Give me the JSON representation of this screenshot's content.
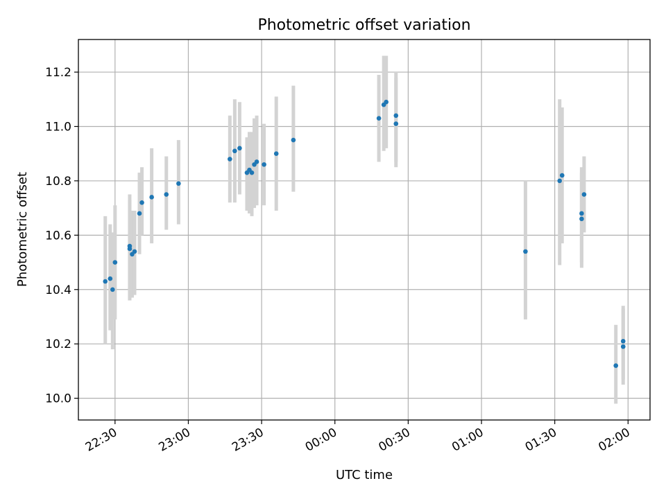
{
  "chart_data": {
    "type": "scatter",
    "title": "Photometric offset variation",
    "xlabel": "UTC time",
    "ylabel": "Photometric offset",
    "x_unit": "UTC time (HH:MM)",
    "xlim": [
      "22:15",
      "02:09"
    ],
    "ylim": [
      9.92,
      11.32
    ],
    "grid": true,
    "xticks": [
      "22:30",
      "23:00",
      "23:30",
      "00:00",
      "00:30",
      "01:00",
      "01:30",
      "02:00"
    ],
    "yticks": [
      "10.0",
      "10.2",
      "10.4",
      "10.6",
      "10.8",
      "11.0",
      "11.2"
    ],
    "marker_color": "#1f77b4",
    "errorbar_color": "#d3d3d3",
    "series": [
      {
        "points": [
          {
            "x": "22:26",
            "y": 10.43,
            "lo": 10.2,
            "hi": 10.67
          },
          {
            "x": "22:28",
            "y": 10.44,
            "lo": 10.25,
            "hi": 10.64
          },
          {
            "x": "22:29",
            "y": 10.4,
            "lo": 10.18,
            "hi": 10.61
          },
          {
            "x": "22:30",
            "y": 10.5,
            "lo": 10.29,
            "hi": 10.71
          },
          {
            "x": "22:36",
            "y": 10.55,
            "lo": 10.36,
            "hi": 10.73
          },
          {
            "x": "22:36",
            "y": 10.56,
            "lo": 10.36,
            "hi": 10.75
          },
          {
            "x": "22:37",
            "y": 10.53,
            "lo": 10.37,
            "hi": 10.69
          },
          {
            "x": "22:38",
            "y": 10.54,
            "lo": 10.38,
            "hi": 10.69
          },
          {
            "x": "22:40",
            "y": 10.68,
            "lo": 10.53,
            "hi": 10.83
          },
          {
            "x": "22:41",
            "y": 10.72,
            "lo": 10.6,
            "hi": 10.85
          },
          {
            "x": "22:45",
            "y": 10.74,
            "lo": 10.57,
            "hi": 10.92
          },
          {
            "x": "22:51",
            "y": 10.75,
            "lo": 10.62,
            "hi": 10.89
          },
          {
            "x": "22:56",
            "y": 10.79,
            "lo": 10.64,
            "hi": 10.95
          },
          {
            "x": "23:17",
            "y": 10.88,
            "lo": 10.72,
            "hi": 11.04
          },
          {
            "x": "23:19",
            "y": 10.91,
            "lo": 10.72,
            "hi": 11.1
          },
          {
            "x": "23:21",
            "y": 10.92,
            "lo": 10.75,
            "hi": 11.09
          },
          {
            "x": "23:24",
            "y": 10.83,
            "lo": 10.69,
            "hi": 10.96
          },
          {
            "x": "23:25",
            "y": 10.84,
            "lo": 10.68,
            "hi": 10.98
          },
          {
            "x": "23:26",
            "y": 10.83,
            "lo": 10.67,
            "hi": 10.98
          },
          {
            "x": "23:27",
            "y": 10.86,
            "lo": 10.7,
            "hi": 11.03
          },
          {
            "x": "23:28",
            "y": 10.87,
            "lo": 10.71,
            "hi": 11.04
          },
          {
            "x": "23:31",
            "y": 10.86,
            "lo": 10.71,
            "hi": 11.01
          },
          {
            "x": "23:36",
            "y": 10.9,
            "lo": 10.69,
            "hi": 11.11
          },
          {
            "x": "23:43",
            "y": 10.95,
            "lo": 10.76,
            "hi": 11.15
          },
          {
            "x": "00:18",
            "y": 11.03,
            "lo": 10.87,
            "hi": 11.19
          },
          {
            "x": "00:20",
            "y": 11.08,
            "lo": 10.91,
            "hi": 11.26
          },
          {
            "x": "00:21",
            "y": 11.09,
            "lo": 10.92,
            "hi": 11.26
          },
          {
            "x": "00:25",
            "y": 11.01,
            "lo": 10.85,
            "hi": 11.18
          },
          {
            "x": "00:25",
            "y": 11.04,
            "lo": 10.87,
            "hi": 11.2
          },
          {
            "x": "01:18",
            "y": 10.54,
            "lo": 10.29,
            "hi": 10.8
          },
          {
            "x": "01:32",
            "y": 10.8,
            "lo": 10.49,
            "hi": 11.1
          },
          {
            "x": "01:33",
            "y": 10.82,
            "lo": 10.57,
            "hi": 11.07
          },
          {
            "x": "01:41",
            "y": 10.66,
            "lo": 10.48,
            "hi": 10.83
          },
          {
            "x": "01:41",
            "y": 10.68,
            "lo": 10.5,
            "hi": 10.85
          },
          {
            "x": "01:42",
            "y": 10.75,
            "lo": 10.61,
            "hi": 10.89
          },
          {
            "x": "01:55",
            "y": 10.12,
            "lo": 9.98,
            "hi": 10.27
          },
          {
            "x": "01:58",
            "y": 10.21,
            "lo": 10.07,
            "hi": 10.34
          },
          {
            "x": "01:58",
            "y": 10.19,
            "lo": 10.05,
            "hi": 10.33
          }
        ]
      }
    ]
  }
}
